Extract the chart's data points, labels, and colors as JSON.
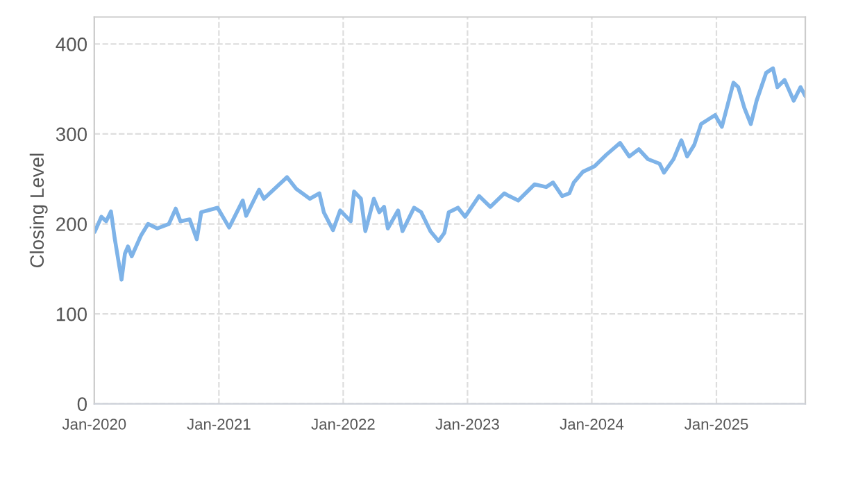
{
  "chart_data": {
    "type": "line",
    "ylabel": "Closing Level",
    "grid": true,
    "legend": false,
    "marker": "none",
    "line_style": "solid",
    "xlim": [
      "2020-01-01",
      "2025-09-19"
    ],
    "ylim": [
      0,
      430
    ],
    "yticks": [
      0,
      100,
      200,
      300,
      400
    ],
    "xticks": [
      {
        "value": "2020-01",
        "label": "Jan-2020"
      },
      {
        "value": "2021-01",
        "label": "Jan-2021"
      },
      {
        "value": "2022-01",
        "label": "Jan-2022"
      },
      {
        "value": "2023-01",
        "label": "Jan-2023"
      },
      {
        "value": "2024-01",
        "label": "Jan-2024"
      },
      {
        "value": "2025-01",
        "label": "Jan-2025"
      }
    ],
    "x": [
      "2020-01-02",
      "2020-01-22",
      "2020-02-05",
      "2020-02-19",
      "2020-03-01",
      "2020-03-21",
      "2020-03-31",
      "2020-04-09",
      "2020-04-20",
      "2020-05-17",
      "2020-06-07",
      "2020-07-04",
      "2020-08-07",
      "2020-08-27",
      "2020-09-10",
      "2020-10-07",
      "2020-10-28",
      "2020-11-10",
      "2020-12-28",
      "2021-01-31",
      "2021-03-12",
      "2021-03-22",
      "2021-04-29",
      "2021-05-13",
      "2021-07-20",
      "2021-08-16",
      "2021-09-25",
      "2021-10-23",
      "2021-11-05",
      "2021-12-02",
      "2021-12-23",
      "2022-01-23",
      "2022-02-02",
      "2022-02-22",
      "2022-03-07",
      "2022-04-01",
      "2022-04-17",
      "2022-05-01",
      "2022-05-12",
      "2022-06-11",
      "2022-06-24",
      "2022-07-28",
      "2022-08-18",
      "2022-09-14",
      "2022-10-08",
      "2022-10-25",
      "2022-11-07",
      "2022-12-04",
      "2022-12-25",
      "2023-02-04",
      "2023-03-09",
      "2023-04-19",
      "2023-05-03",
      "2023-05-30",
      "2023-07-17",
      "2023-08-20",
      "2023-09-09",
      "2023-10-06",
      "2023-10-27",
      "2023-11-09",
      "2023-12-06",
      "2024-01-09",
      "2024-02-13",
      "2024-03-24",
      "2024-04-20",
      "2024-05-18",
      "2024-06-14",
      "2024-07-18",
      "2024-07-31",
      "2024-08-28",
      "2024-09-20",
      "2024-10-07",
      "2024-10-28",
      "2024-11-17",
      "2024-12-28",
      "2025-01-17",
      "2025-02-20",
      "2025-03-06",
      "2025-03-24",
      "2025-04-12",
      "2025-04-29",
      "2025-05-27",
      "2025-06-16",
      "2025-06-29",
      "2025-07-20",
      "2025-08-16",
      "2025-09-05",
      "2025-09-19"
    ],
    "series": [
      {
        "color": "#7eb3e8",
        "values": [
          191,
          208,
          203,
          214,
          184,
          138,
          167,
          175,
          164,
          187,
          200,
          195,
          200,
          217,
          203,
          205,
          183,
          213,
          218,
          196,
          226,
          209,
          238,
          228,
          252,
          239,
          228,
          234,
          213,
          193,
          215,
          203,
          236,
          228,
          192,
          228,
          213,
          219,
          195,
          215,
          192,
          218,
          213,
          192,
          181,
          190,
          213,
          218,
          208,
          231,
          219,
          234,
          231,
          226,
          244,
          241,
          246,
          231,
          234,
          246,
          258,
          264,
          277,
          290,
          275,
          283,
          272,
          267,
          257,
          272,
          293,
          275,
          288,
          311,
          321,
          308,
          357,
          352,
          329,
          311,
          337,
          368,
          373,
          352,
          360,
          337,
          352,
          342
        ]
      }
    ]
  }
}
